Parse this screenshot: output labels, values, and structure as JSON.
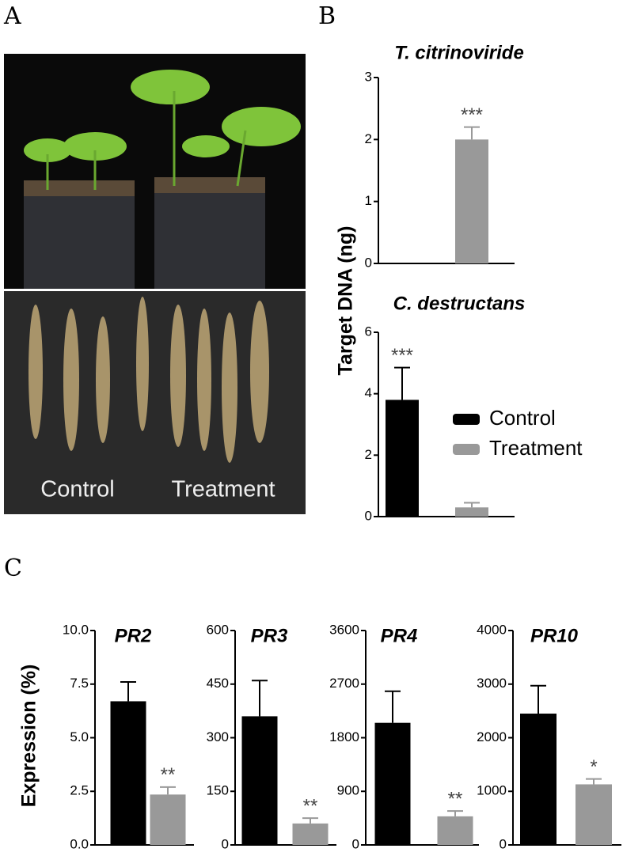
{
  "panel_labels": [
    "A",
    "B",
    "C"
  ],
  "photo": {
    "labels": [
      "Control",
      "Treatment"
    ]
  },
  "chart_data": [
    {
      "type": "bar",
      "title": "T. citrinoviride",
      "ylabel": "Target DNA  (ng)",
      "ylim": [
        0,
        3
      ],
      "yticks": [
        0,
        1,
        2,
        3
      ],
      "series": [
        {
          "color": "#000000",
          "values": [
            0
          ],
          "errors": [
            0
          ]
        },
        {
          "color": "#999999",
          "values": [
            2.0
          ],
          "errors": [
            0.2
          ],
          "significance": "***"
        }
      ]
    },
    {
      "type": "bar",
      "title": "C. destructans",
      "ylim": [
        0,
        6
      ],
      "yticks": [
        0,
        2,
        4,
        6
      ],
      "legend": "right",
      "series": [
        {
          "name": "Control",
          "color": "#000000",
          "values": [
            3.8
          ],
          "errors": [
            1.05
          ],
          "significance": "***"
        },
        {
          "name": "Treatment",
          "color": "#999999",
          "values": [
            0.3
          ],
          "errors": [
            0.15
          ]
        }
      ]
    },
    {
      "type": "bar",
      "title": "PR2",
      "ylabel": "Expression  (%)",
      "ylim": [
        0,
        10
      ],
      "yticks": [
        {
          "value": 0,
          "label": "0.0"
        },
        2.5,
        {
          "value": 5,
          "label": "5.0"
        },
        7.5,
        {
          "value": 10,
          "label": "10.0"
        }
      ],
      "series": [
        {
          "color": "#000000",
          "values": [
            6.7
          ],
          "errors": [
            0.9
          ]
        },
        {
          "color": "#999999",
          "values": [
            2.35
          ],
          "errors": [
            0.35
          ],
          "significance": "**"
        }
      ]
    },
    {
      "type": "bar",
      "title": "PR3",
      "ylim": [
        0,
        600
      ],
      "yticks": [
        0,
        150,
        300,
        450,
        600
      ],
      "series": [
        {
          "color": "#000000",
          "values": [
            360
          ],
          "errors": [
            100
          ]
        },
        {
          "color": "#999999",
          "values": [
            60
          ],
          "errors": [
            15
          ],
          "significance": "**"
        }
      ]
    },
    {
      "type": "bar",
      "title": "PR4",
      "ylim": [
        0,
        3600
      ],
      "yticks": [
        0,
        900,
        1800,
        2700,
        3600
      ],
      "series": [
        {
          "color": "#000000",
          "values": [
            2050
          ],
          "errors": [
            530
          ]
        },
        {
          "color": "#999999",
          "values": [
            480
          ],
          "errors": [
            90
          ],
          "significance": "**"
        }
      ]
    },
    {
      "type": "bar",
      "title": "PR10",
      "ylim": [
        0,
        4000
      ],
      "yticks": [
        0,
        1000,
        2000,
        3000,
        4000
      ],
      "series": [
        {
          "color": "#000000",
          "values": [
            2450
          ],
          "errors": [
            520
          ]
        },
        {
          "color": "#999999",
          "values": [
            1130
          ],
          "errors": [
            100
          ],
          "significance": "*"
        }
      ]
    }
  ]
}
